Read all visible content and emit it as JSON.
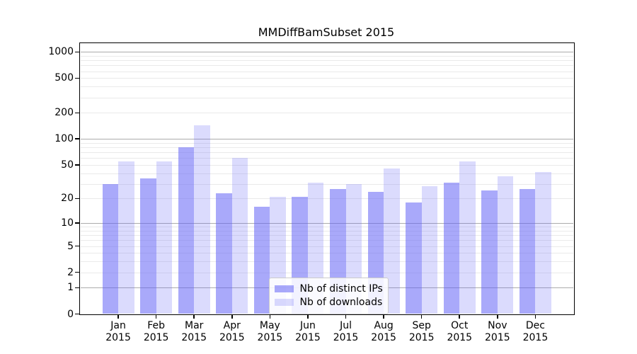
{
  "chart_data": {
    "type": "bar",
    "title": "MMDiffBamSubset 2015",
    "categories": [
      {
        "month": "Jan",
        "year": "2015"
      },
      {
        "month": "Feb",
        "year": "2015"
      },
      {
        "month": "Mar",
        "year": "2015"
      },
      {
        "month": "Apr",
        "year": "2015"
      },
      {
        "month": "May",
        "year": "2015"
      },
      {
        "month": "Jun",
        "year": "2015"
      },
      {
        "month": "Jul",
        "year": "2015"
      },
      {
        "month": "Aug",
        "year": "2015"
      },
      {
        "month": "Sep",
        "year": "2015"
      },
      {
        "month": "Oct",
        "year": "2015"
      },
      {
        "month": "Nov",
        "year": "2015"
      },
      {
        "month": "Dec",
        "year": "2015"
      }
    ],
    "series": [
      {
        "name": "Nb of distinct IPs",
        "color": "rgba(98,98,245,0.55)",
        "values": [
          30,
          35,
          80,
          23,
          16,
          21,
          26,
          24,
          18,
          31,
          25,
          26
        ]
      },
      {
        "name": "Nb of downloads",
        "color": "rgba(98,98,245,0.23)",
        "values": [
          55,
          55,
          145,
          60,
          21,
          31,
          30,
          45,
          28,
          55,
          37,
          41
        ]
      }
    ],
    "yticks": [
      0,
      1,
      2,
      5,
      10,
      20,
      50,
      100,
      200,
      500,
      1000
    ],
    "major_gridlines": [
      1,
      10,
      100,
      1000
    ],
    "scale": "log1p",
    "ylim": [
      0,
      1200
    ],
    "grid": true,
    "legend_position": "lower-center",
    "colors": {
      "bar_dark_composite": "#aaaaf8",
      "bar_light_composite": "#dcdcfa",
      "major_grid": "#ababab",
      "minor_grid": "#eaeaea",
      "axis": "#000000",
      "legend_border": "#cccccc"
    }
  }
}
